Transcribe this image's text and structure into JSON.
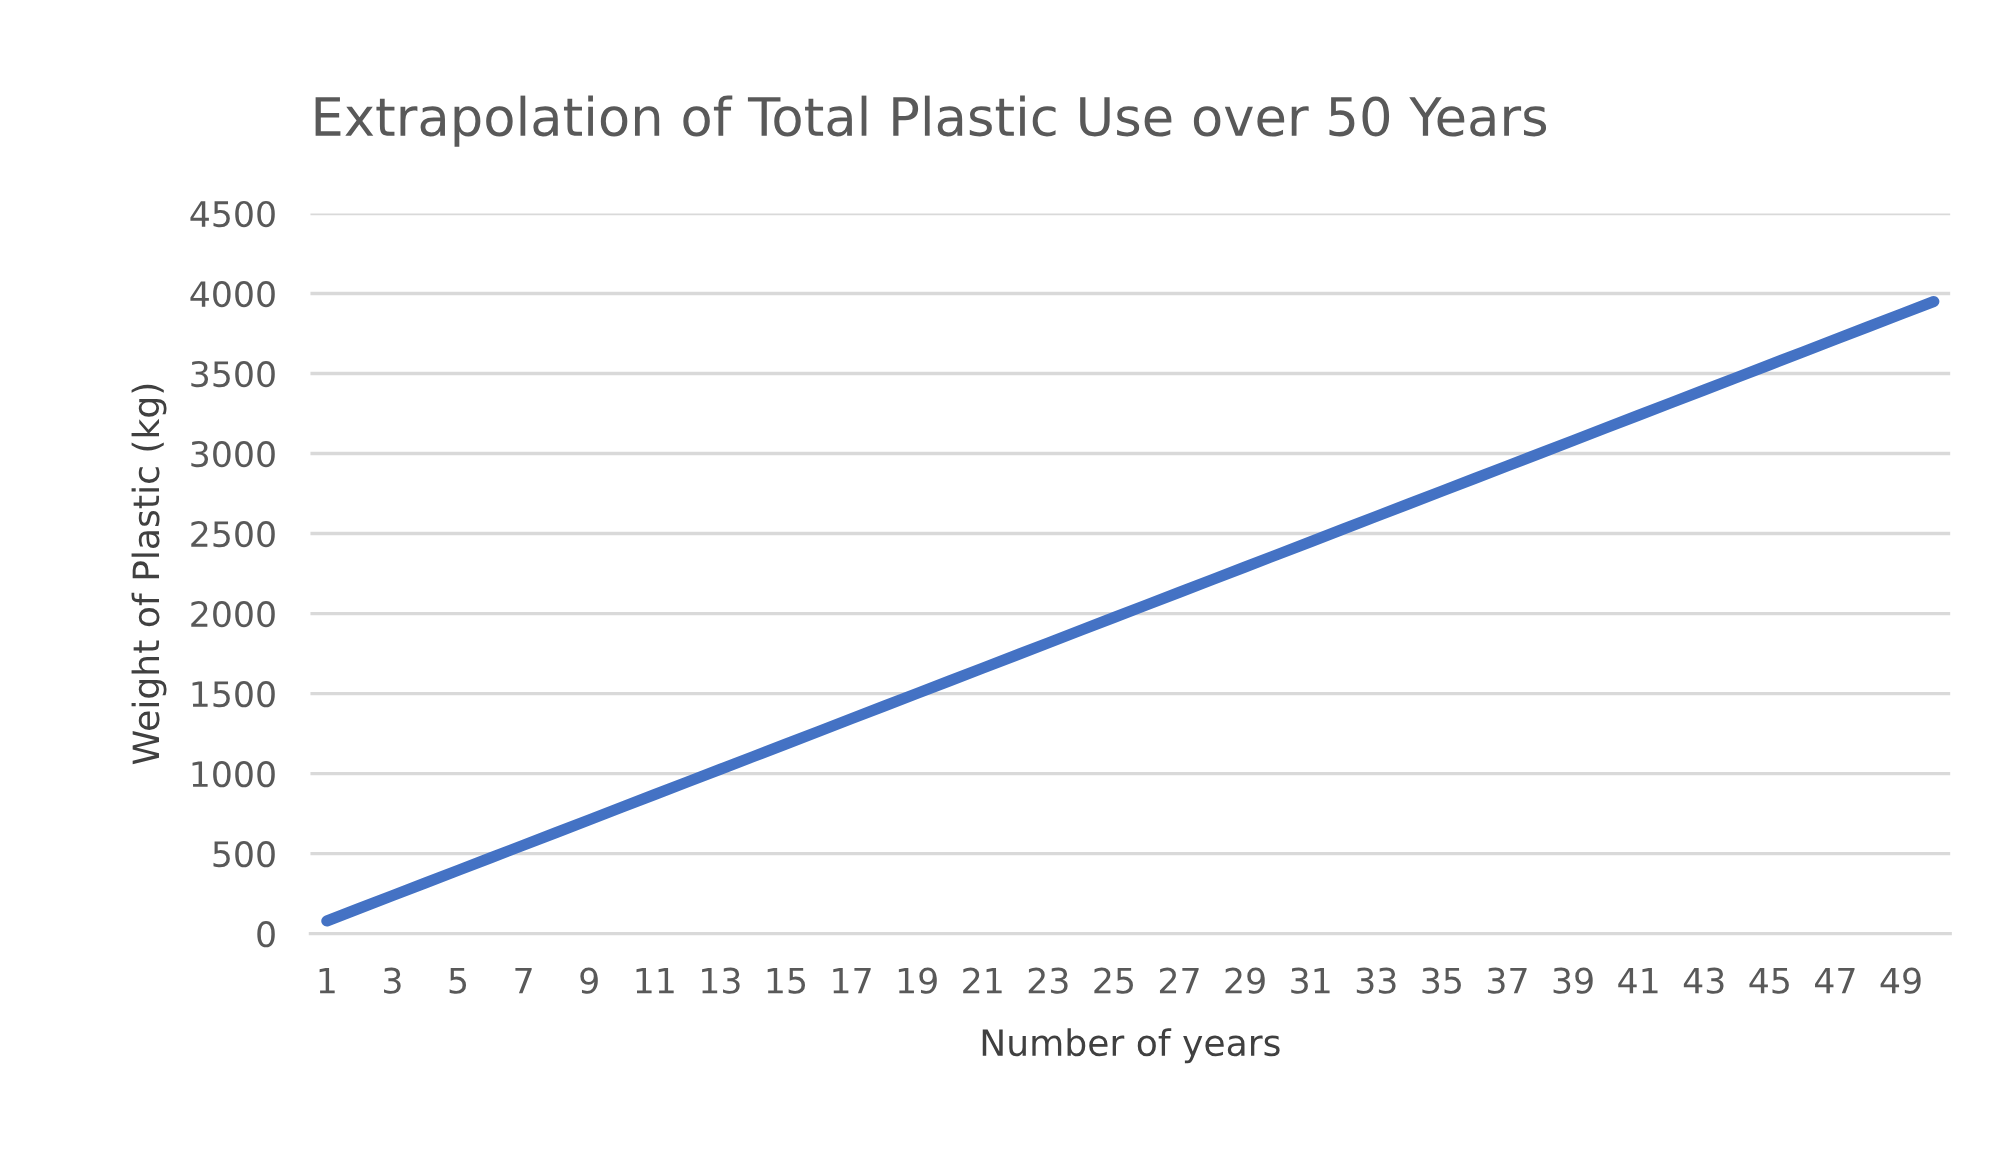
{
  "chart_data": {
    "type": "line",
    "title": "Extrapolation of Total Plastic Use over 50 Years",
    "xlabel": "Number of years",
    "ylabel": "Weight of Plastic (kg)",
    "categories": [
      "1",
      null,
      "3",
      null,
      "5",
      null,
      "7",
      null,
      "9",
      null,
      "11",
      null,
      "13",
      null,
      "15",
      null,
      "17",
      null,
      "19",
      null,
      "21",
      null,
      "23",
      null,
      "25",
      null,
      "27",
      null,
      "29",
      null,
      "31",
      null,
      "33",
      null,
      "35",
      null,
      "37",
      null,
      "39",
      null,
      "41",
      null,
      "43",
      null,
      "45",
      null,
      "47",
      null,
      "49",
      null
    ],
    "series": [
      {
        "color": "#4472c4",
        "values": [
          79,
          158,
          237,
          316,
          395,
          474,
          553,
          632,
          711,
          790,
          869,
          948,
          1027,
          1106,
          1185,
          1264,
          1343,
          1422,
          1501,
          1580,
          1659,
          1738,
          1817,
          1896,
          1975,
          2054,
          2133,
          2212,
          2291,
          2370,
          2449,
          2528,
          2607,
          2686,
          2765,
          2844,
          2923,
          3002,
          3081,
          3160,
          3239,
          3318,
          3397,
          3476,
          3555,
          3634,
          3713,
          3792,
          3871,
          3950
        ]
      }
    ],
    "ylim": [
      0,
      4500
    ],
    "yticks": [
      0,
      500,
      1000,
      1500,
      2000,
      2500,
      3000,
      3500,
      4000,
      4500
    ],
    "grid": "y",
    "legend": false,
    "marker": "none",
    "line_style": "solid"
  }
}
